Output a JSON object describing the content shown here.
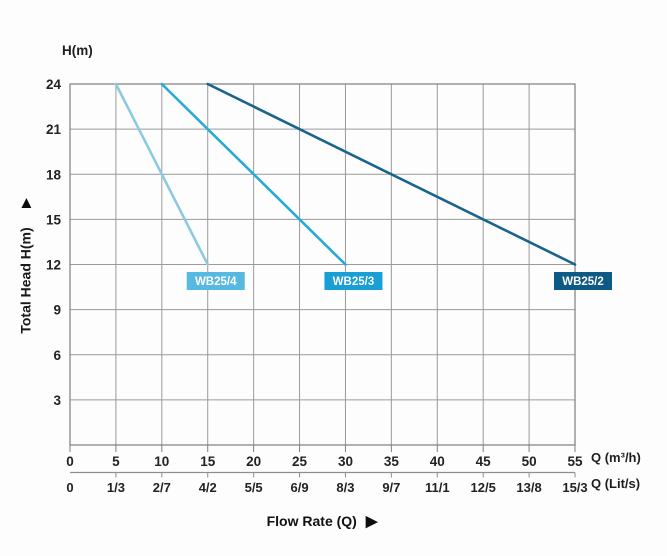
{
  "chart_data": {
    "type": "line",
    "title": "",
    "ylabel": "Total Head H(m)",
    "xlabel": "Flow Rate (Q)",
    "y_unit_label": "H(m)",
    "x_unit_labels": [
      "Q (m³/h)",
      "Q (Lit/s)"
    ],
    "xlim": [
      0,
      55
    ],
    "ylim": [
      0,
      24
    ],
    "grid": true,
    "legend_position": "inline-labels",
    "y_ticks": [
      3,
      6,
      9,
      12,
      15,
      18,
      21,
      24
    ],
    "x_tick_step": 5,
    "x_ticks_m3h": [
      "0",
      "5",
      "10",
      "15",
      "20",
      "25",
      "30",
      "35",
      "40",
      "45",
      "50",
      "55"
    ],
    "x_ticks_lits": [
      "0",
      "1/3",
      "2/7",
      "4/2",
      "5/5",
      "6/9",
      "8/3",
      "9/7",
      "11/1",
      "12/5",
      "13/8",
      "15/3"
    ],
    "series": [
      {
        "name": "WB25/4",
        "color": "#8ec9e2",
        "label_bg": "#58b9e0",
        "points": [
          [
            5,
            24
          ],
          [
            15,
            12
          ]
        ]
      },
      {
        "name": "WB25/3",
        "color": "#27aad6",
        "label_bg": "#189fd6",
        "points": [
          [
            10,
            24
          ],
          [
            30,
            12
          ]
        ]
      },
      {
        "name": "WB25/2",
        "color": "#19648c",
        "label_bg": "#0d5a84",
        "points": [
          [
            15,
            24
          ],
          [
            55,
            12
          ]
        ]
      }
    ]
  },
  "colors": {
    "grid": "#9a9a9a",
    "border": "#7d7d7d",
    "axis2": "#8f8f8f",
    "tick_text": "#222222",
    "label_text": "#ffffff",
    "background": "#fdfdfd"
  }
}
